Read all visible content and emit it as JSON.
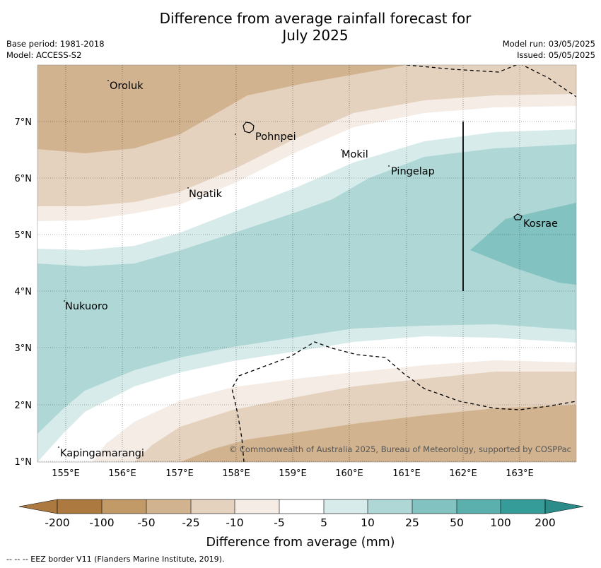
{
  "title_line1": "Difference from average rainfall forecast for",
  "title_line2": "July 2025",
  "base_period": "Base period: 1981-2018",
  "model": "Model: ACCESS-S2",
  "model_run": "Model run: 03/05/2025",
  "issued": "Issued: 05/05/2025",
  "copyright": "© Commonwealth of Australia 2025, Bureau of Meteorology, supported by COSPPac",
  "colorbar_label": "Difference from average (mm)",
  "footnote": "-- -- -- EEZ border V11 (Flanders Marine Institute, 2019).",
  "lon_labels": [
    "155°E",
    "156°E",
    "157°E",
    "158°E",
    "159°E",
    "160°E",
    "161°E",
    "162°E",
    "163°E"
  ],
  "lat_labels": [
    "7°N",
    "6°N",
    "5°N",
    "4°N",
    "3°N",
    "2°N",
    "1°N"
  ],
  "places": [
    {
      "name": "Oroluk",
      "icon": "atoll-icon"
    },
    {
      "name": "Pohnpei",
      "icon": "island-outline-icon"
    },
    {
      "name": "Mokil",
      "icon": "atoll-icon"
    },
    {
      "name": "Pingelap",
      "icon": "atoll-icon"
    },
    {
      "name": "Ngatik",
      "icon": "atoll-icon"
    },
    {
      "name": "Kosrae",
      "icon": "island-outline-icon"
    },
    {
      "name": "Nukuoro",
      "icon": "atoll-icon"
    },
    {
      "name": "Kapingamarangi",
      "icon": "atoll-icon"
    }
  ],
  "colorbar": {
    "ticks": [
      "-200",
      "-100",
      "-50",
      "-25",
      "-10",
      "-5",
      "5",
      "10",
      "25",
      "50",
      "100",
      "200"
    ],
    "colors": [
      "#ac7940",
      "#c29a68",
      "#d2b38f",
      "#e5d2be",
      "#f4ece5",
      "#ffffff",
      "#d6ebea",
      "#aed7d6",
      "#82c2c0",
      "#5bafad",
      "#359c99",
      "#2b8c89"
    ]
  }
}
